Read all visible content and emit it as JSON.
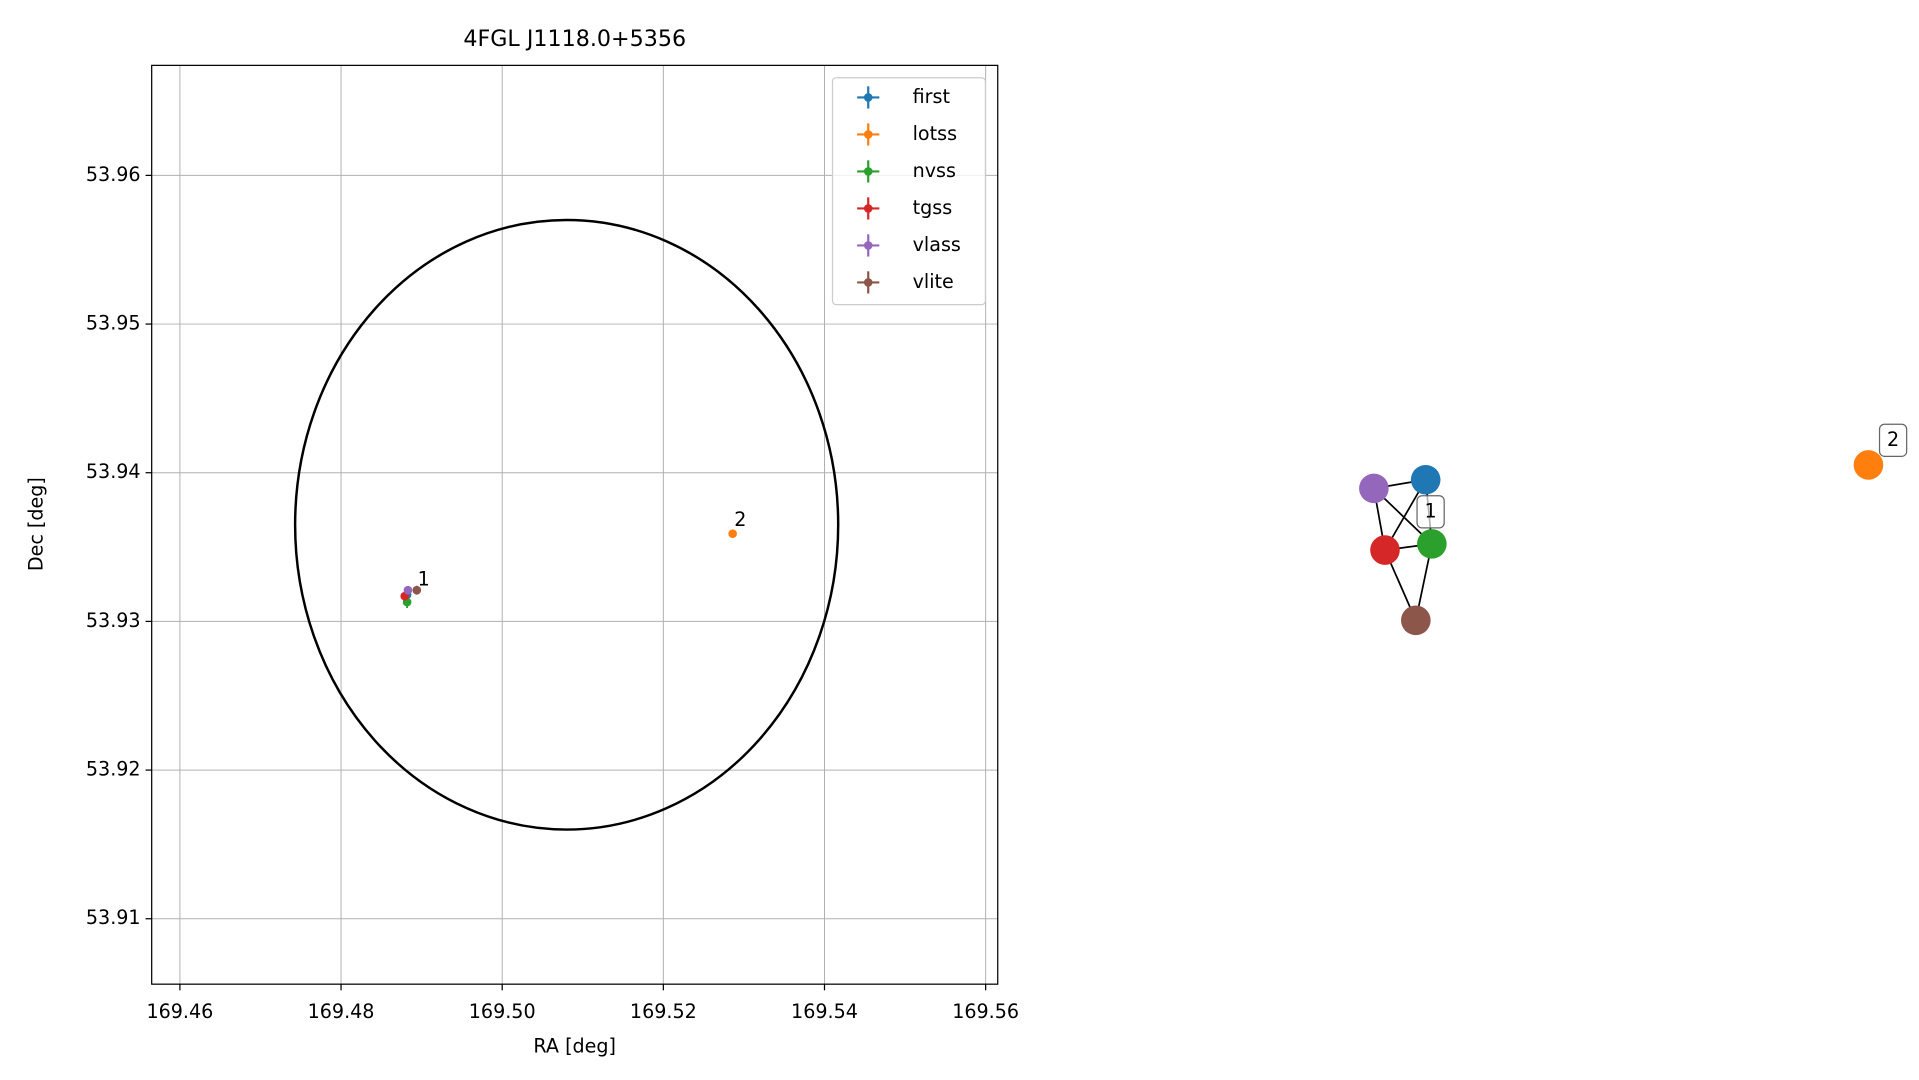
{
  "chart_data": [
    {
      "type": "scatter",
      "title": "4FGL J1118.0+5356",
      "x_label": "RA [deg]",
      "y_label": "Dec [deg]",
      "xlim": [
        169.4565,
        169.5615
      ],
      "ylim": [
        53.9056,
        53.9674
      ],
      "xticks": [
        169.46,
        169.48,
        {
          "value": 169.5,
          "label": "169.50"
        },
        169.52,
        169.54,
        169.56
      ],
      "yticks": [
        53.91,
        53.92,
        53.93,
        53.94,
        53.95,
        53.96
      ],
      "grid": true,
      "legend": "upper right",
      "ellipse": {
        "center": [
          169.508,
          53.9365
        ],
        "width": 0.0674,
        "height": 0.041,
        "color": "#000000"
      },
      "series": [
        {
          "name": "first",
          "color": "#1f77b4",
          "x": [
            169.4882
          ],
          "values": [
            53.9318
          ],
          "xerr": [
            0.0003
          ],
          "yerr": [
            0.0004
          ]
        },
        {
          "name": "lotss",
          "color": "#ff7f0e",
          "x": [
            169.5286
          ],
          "values": [
            53.9359
          ],
          "xerr": [
            0.0002
          ],
          "yerr": [
            0.0002
          ]
        },
        {
          "name": "nvss",
          "color": "#2ca02c",
          "x": [
            169.4882
          ],
          "values": [
            53.9313
          ],
          "xerr": [
            0.0003
          ],
          "yerr": [
            0.0004
          ]
        },
        {
          "name": "tgss",
          "color": "#d62728",
          "x": [
            169.4879
          ],
          "values": [
            53.9317
          ],
          "xerr": [
            0.0003
          ],
          "yerr": [
            0.0003
          ]
        },
        {
          "name": "vlass",
          "color": "#9467bd",
          "x": [
            169.4883
          ],
          "values": [
            53.9321
          ],
          "xerr": [
            0.0002
          ],
          "yerr": [
            0.0002
          ]
        },
        {
          "name": "vlite",
          "color": "#8c564b",
          "x": [
            169.4894
          ],
          "values": [
            53.9321
          ],
          "xerr": [
            0.0003
          ],
          "yerr": [
            0.0003
          ]
        }
      ],
      "annotations": [
        {
          "text": "1",
          "x": 169.4895,
          "y": 53.9328
        },
        {
          "text": "2",
          "x": 169.5288,
          "y": 53.9368
        }
      ]
    },
    {
      "type": "network",
      "nodes": [
        {
          "color": "#1f77b4"
        },
        {
          "color": "#9467bd"
        },
        {
          "color": "#d62728"
        },
        {
          "color": "#2ca02c"
        },
        {
          "color": "#8c564b"
        },
        {
          "color": "#ff7f0e"
        }
      ],
      "edges": [
        [
          1,
          0
        ],
        [
          1,
          2
        ],
        [
          1,
          3
        ],
        [
          0,
          2
        ],
        [
          0,
          3
        ],
        [
          2,
          3
        ],
        [
          2,
          4
        ],
        [
          3,
          4
        ]
      ],
      "labels": [
        "1",
        "2"
      ]
    }
  ]
}
